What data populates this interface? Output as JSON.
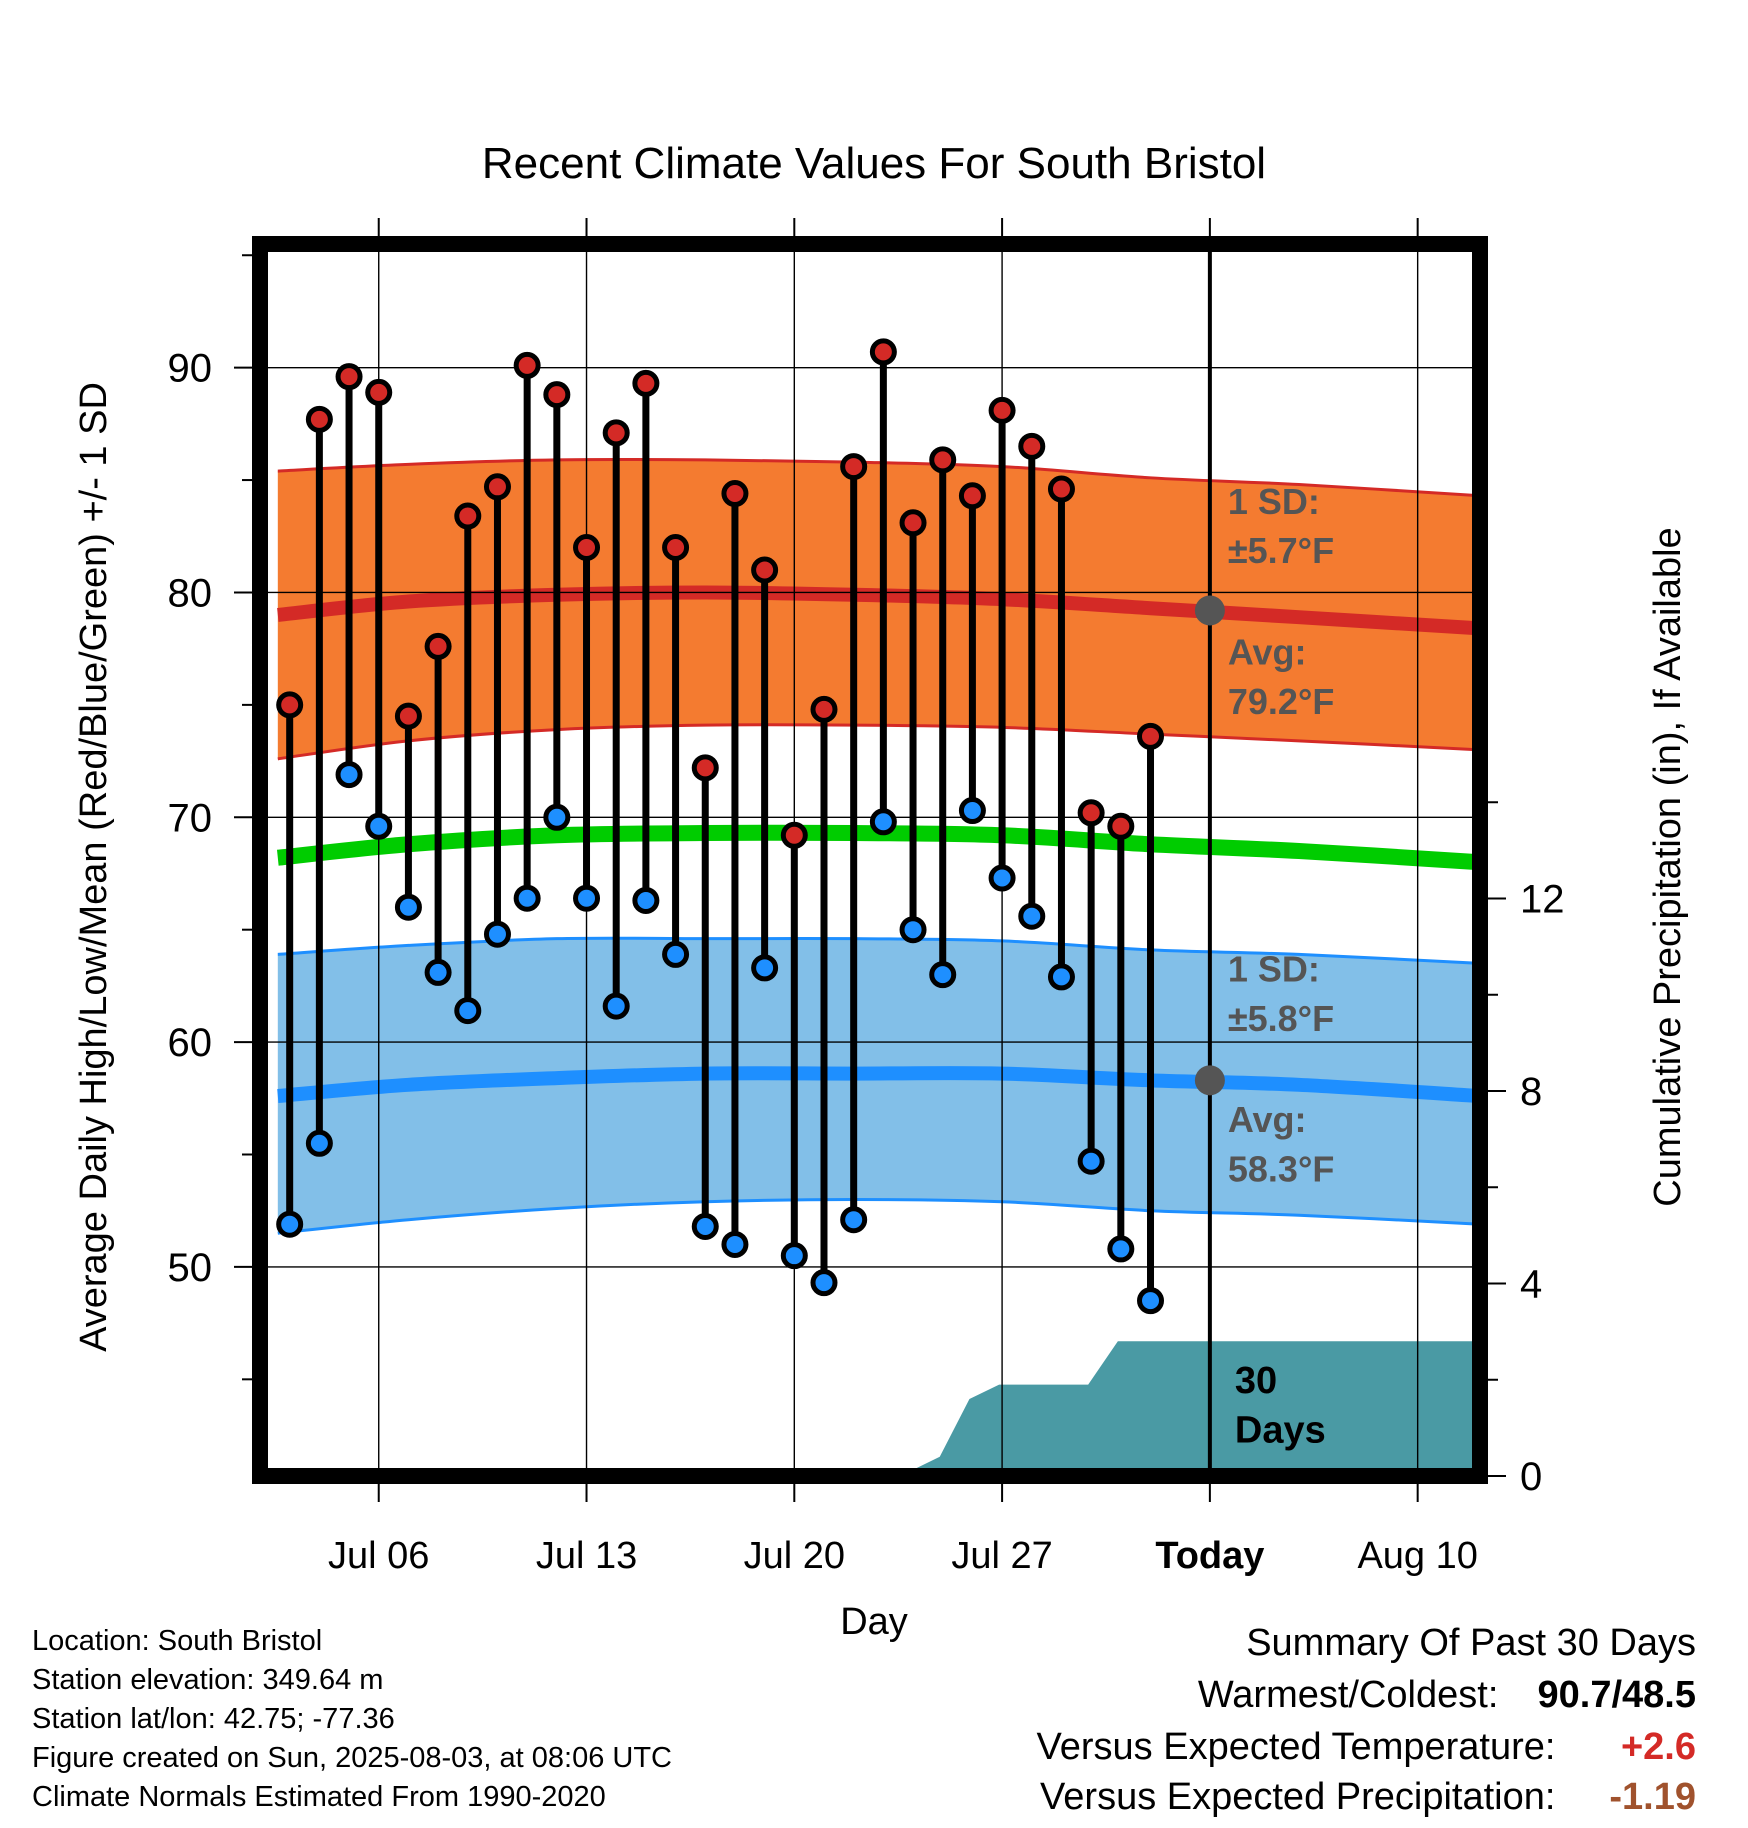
{
  "chart_data": {
    "type": "line",
    "title": "Recent Climate Values For South Bristol",
    "xlabel": "Day",
    "ylabel_left": "Average Daily High/Low/Mean (Red/Blue/Green) +/- 1 SD",
    "ylabel_right": "Cumulative Precipitation (in), If Available",
    "x_ticks": [
      {
        "day": 6,
        "label": "Jul 06"
      },
      {
        "day": 13,
        "label": "Jul 13"
      },
      {
        "day": 20,
        "label": "Jul 20"
      },
      {
        "day": 27,
        "label": "Jul 27"
      },
      {
        "day": 34,
        "label": "Today"
      },
      {
        "day": 41,
        "label": "Aug 10"
      }
    ],
    "xlim": [
      2.0,
      43.1
    ],
    "y_left_ticks": [
      50,
      60,
      70,
      80,
      90
    ],
    "y_left_lim": [
      40.7,
      95.5
    ],
    "y_right_ticks": [
      0,
      4,
      8,
      12
    ],
    "y_right_lim": [
      0,
      25.6
    ],
    "grid": true,
    "today": 34,
    "daily": [
      {
        "day": 3,
        "high": 75.0,
        "low": 51.9
      },
      {
        "day": 4,
        "high": 87.7,
        "low": 55.5
      },
      {
        "day": 5,
        "high": 89.6,
        "low": 71.9
      },
      {
        "day": 6,
        "high": 88.9,
        "low": 69.6
      },
      {
        "day": 7,
        "high": 74.5,
        "low": 66.0
      },
      {
        "day": 8,
        "high": 77.6,
        "low": 63.1
      },
      {
        "day": 9,
        "high": 83.4,
        "low": 61.4
      },
      {
        "day": 10,
        "high": 84.7,
        "low": 64.8
      },
      {
        "day": 11,
        "high": 90.1,
        "low": 66.4
      },
      {
        "day": 12,
        "high": 88.8,
        "low": 70.0
      },
      {
        "day": 13,
        "high": 82.0,
        "low": 66.4
      },
      {
        "day": 14,
        "high": 87.1,
        "low": 61.6
      },
      {
        "day": 15,
        "high": 89.3,
        "low": 66.3
      },
      {
        "day": 16,
        "high": 82.0,
        "low": 63.9
      },
      {
        "day": 17,
        "high": 72.2,
        "low": 51.8
      },
      {
        "day": 18,
        "high": 84.4,
        "low": 51.0
      },
      {
        "day": 19,
        "high": 81.0,
        "low": 63.3
      },
      {
        "day": 20,
        "high": 69.2,
        "low": 50.5
      },
      {
        "day": 21,
        "high": 74.8,
        "low": 49.3
      },
      {
        "day": 22,
        "high": 85.6,
        "low": 52.1
      },
      {
        "day": 23,
        "high": 90.7,
        "low": 69.8
      },
      {
        "day": 24,
        "high": 83.1,
        "low": 65.0
      },
      {
        "day": 25,
        "high": 85.9,
        "low": 63.0
      },
      {
        "day": 26,
        "high": 84.3,
        "low": 70.3
      },
      {
        "day": 27,
        "high": 88.1,
        "low": 67.3
      },
      {
        "day": 28,
        "high": 86.5,
        "low": 65.6
      },
      {
        "day": 29,
        "high": 84.6,
        "low": 62.9
      },
      {
        "day": 30,
        "high": 70.2,
        "low": 54.7
      },
      {
        "day": 31,
        "high": 69.6,
        "low": 50.8
      },
      {
        "day": 32,
        "high": 73.6,
        "low": 48.5
      }
    ],
    "normals": {
      "day": [
        2.6,
        7,
        12,
        17,
        22,
        27,
        32,
        37,
        43.1
      ],
      "high_mean": [
        79.0,
        79.6,
        79.9,
        80.0,
        79.9,
        79.7,
        79.3,
        78.9,
        78.4
      ],
      "high_upper": [
        85.4,
        85.7,
        85.9,
        85.9,
        85.8,
        85.6,
        85.1,
        84.8,
        84.3
      ],
      "high_lower": [
        72.6,
        73.4,
        73.9,
        74.1,
        74.1,
        74.0,
        73.7,
        73.4,
        73.0
      ],
      "mean": [
        68.2,
        68.8,
        69.2,
        69.3,
        69.3,
        69.2,
        68.8,
        68.5,
        68.0
      ],
      "low_mean": [
        57.6,
        58.1,
        58.4,
        58.6,
        58.6,
        58.6,
        58.3,
        58.1,
        57.6
      ],
      "low_upper": [
        63.9,
        64.3,
        64.6,
        64.6,
        64.6,
        64.5,
        64.1,
        63.9,
        63.5
      ],
      "low_lower": [
        51.5,
        52.1,
        52.6,
        52.9,
        53.0,
        52.9,
        52.5,
        52.3,
        51.9
      ]
    },
    "precip": {
      "day": [
        2.6,
        11.9,
        12.0,
        23.9,
        24.9,
        25.9,
        26.9,
        29.9,
        30.9,
        43.1
      ],
      "cumulative": [
        0,
        0,
        0.1,
        0.1,
        0.4,
        1.6,
        1.9,
        1.9,
        2.8,
        2.8
      ]
    },
    "annotations": {
      "high_sd_label": "1 SD:",
      "high_sd_value": "±5.7°F",
      "high_avg_label": "Avg:",
      "high_avg_value": "79.2°F",
      "high_today_avg": 79.2,
      "low_sd_label": "1 SD:",
      "low_sd_value": "±5.8°F",
      "low_avg_label": "Avg:",
      "low_avg_value": "58.3°F",
      "low_today_avg": 58.3,
      "period_label_1": "30",
      "period_label_2": "Days"
    },
    "colors": {
      "high_band": "#f47b30",
      "high_line": "#d42a26",
      "mean_line": "#00cc00",
      "low_band": "#82bfe8",
      "low_line": "#1e8fff",
      "precip": "#4a9aa4",
      "high_marker": "#d42a26",
      "low_marker": "#1e8fff",
      "avg_marker": "#555555",
      "annotation_text": "#555555"
    }
  },
  "station_info": {
    "location": "Location: South Bristol",
    "elevation": "Station elevation: 349.64 m",
    "latlon": "Station lat/lon: 42.75; -77.36",
    "created": "Figure created on Sun, 2025-08-03, at 08:06 UTC",
    "normals": "Climate Normals Estimated From 1990-2020"
  },
  "summary": {
    "heading": "Summary Of Past 30 Days",
    "warmest_coldest_label": "Warmest/Coldest:",
    "warmest_coldest_value": "90.7/48.5",
    "temp_label": "Versus Expected Temperature:",
    "temp_value": "+2.6",
    "temp_color": "#d42a26",
    "precip_label": "Versus Expected Precipitation:",
    "precip_value": "-1.19",
    "precip_color": "#a0522d"
  }
}
